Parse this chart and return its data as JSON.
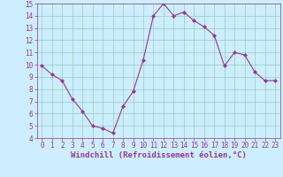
{
  "x": [
    0,
    1,
    2,
    3,
    4,
    5,
    6,
    7,
    8,
    9,
    10,
    11,
    12,
    13,
    14,
    15,
    16,
    17,
    18,
    19,
    20,
    21,
    22,
    23
  ],
  "y": [
    9.9,
    9.2,
    8.7,
    7.2,
    6.2,
    5.0,
    4.8,
    4.4,
    6.6,
    7.8,
    10.4,
    14.0,
    15.0,
    14.0,
    14.3,
    13.6,
    13.1,
    12.4,
    9.9,
    11.0,
    10.8,
    9.4,
    8.7,
    8.7
  ],
  "line_color": "#993399",
  "marker": "D",
  "marker_size": 2,
  "bg_color": "#cceeff",
  "grid_color": "#99ccbb",
  "xlabel": "Windchill (Refroidissement éolien,°C)",
  "xlabel_color": "#993399",
  "tick_color": "#993399",
  "xlim": [
    -0.5,
    23.5
  ],
  "ylim": [
    4,
    15
  ],
  "yticks": [
    4,
    5,
    6,
    7,
    8,
    9,
    10,
    11,
    12,
    13,
    14,
    15
  ],
  "xticks": [
    0,
    1,
    2,
    3,
    4,
    5,
    6,
    7,
    8,
    9,
    10,
    11,
    12,
    13,
    14,
    15,
    16,
    17,
    18,
    19,
    20,
    21,
    22,
    23
  ],
  "tick_fontsize": 5.5,
  "xlabel_fontsize": 6.5
}
